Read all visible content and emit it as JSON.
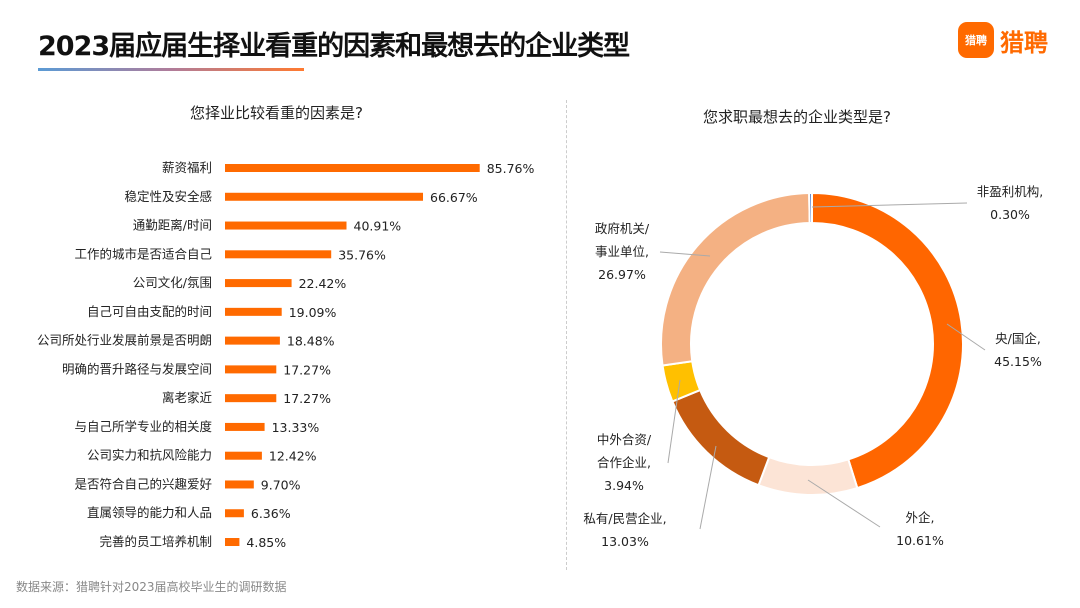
{
  "title": "2023届应届生择业看重的因素和最想去的企业类型",
  "logo": {
    "icon_text": "猎聘",
    "text": "猎聘"
  },
  "footer": "数据来源：猎聘针对2023届高校毕业生的调研数据",
  "chart_data": [
    {
      "type": "bar",
      "orientation": "horizontal",
      "title": "您择业比较看重的因素是?",
      "categories": [
        "薪资福利",
        "稳定性及安全感",
        "通勤距离/时间",
        "工作的城市是否适合自己",
        "公司文化/氛围",
        "自己可自由支配的时间",
        "公司所处行业发展前景是否明朗",
        "明确的晋升路径与发展空间",
        "离老家近",
        "与自己所学专业的相关度",
        "公司实力和抗风险能力",
        "是否符合自己的兴趣爱好",
        "直属领导的能力和人品",
        "完善的员工培养机制"
      ],
      "values": [
        85.76,
        66.67,
        40.91,
        35.76,
        22.42,
        19.09,
        18.48,
        17.27,
        17.27,
        13.33,
        12.42,
        9.7,
        6.36,
        4.85
      ],
      "labels": [
        "85.76%",
        "66.67%",
        "40.91%",
        "35.76%",
        "22.42%",
        "19.09%",
        "18.48%",
        "17.27%",
        "17.27%",
        "13.33%",
        "12.42%",
        "9.70%",
        "6.36%",
        "4.85%"
      ],
      "color": "#ff6a00"
    },
    {
      "type": "pie",
      "donut": true,
      "title": "您求职最想去的企业类型是?",
      "slices": [
        {
          "name": "央/国企,",
          "value": 45.15,
          "label": "45.15%",
          "color": "#ff6600"
        },
        {
          "name": "外企,",
          "value": 10.61,
          "label": "10.61%",
          "color": "#fce4d6"
        },
        {
          "name": "私有/民营企业,",
          "value": 13.03,
          "label": "13.03%",
          "color": "#c55a11"
        },
        {
          "name": "中外合资/合作企业,",
          "value": 3.94,
          "label": "3.94%",
          "color": "#ffc000"
        },
        {
          "name": "政府机关/事业单位,",
          "value": 26.97,
          "label": "26.97%",
          "color": "#f4b183"
        },
        {
          "name": "非盈利机构,",
          "value": 0.3,
          "label": "0.30%",
          "color": "#4472c4"
        }
      ]
    }
  ]
}
